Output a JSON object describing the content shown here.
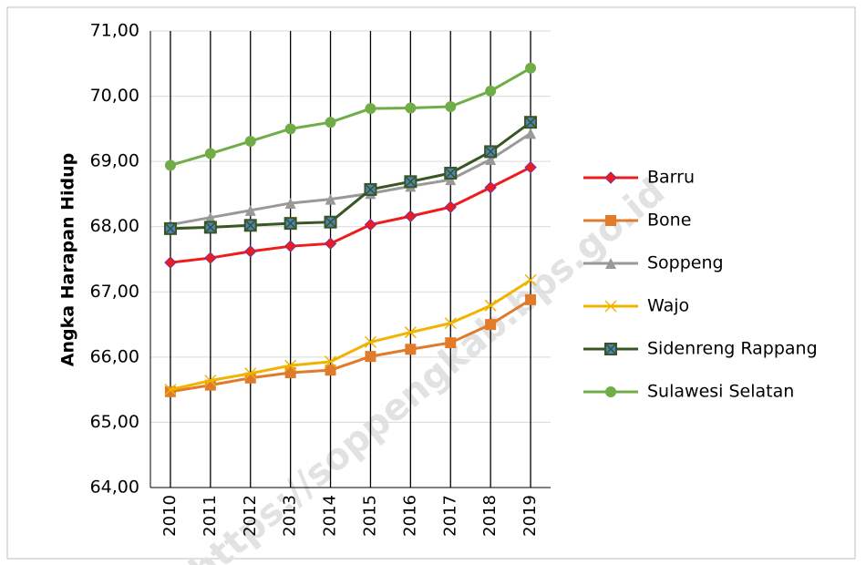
{
  "chart_data": {
    "type": "line",
    "y_label": "Angka Harapan Hidup",
    "watermark": "https://soppengkab.bps.go.id",
    "categories": [
      "2010",
      "2011",
      "2012",
      "2013",
      "2014",
      "2015",
      "2016",
      "2017",
      "2018",
      "2019"
    ],
    "series": [
      {
        "name": "Barru",
        "color": "#ee1c1c",
        "marker": "diamond",
        "values": [
          67.45,
          67.52,
          67.62,
          67.7,
          67.74,
          68.03,
          68.16,
          68.3,
          68.6,
          68.91
        ]
      },
      {
        "name": "Bone",
        "color": "#e07b2b",
        "marker": "square",
        "values": [
          65.47,
          65.57,
          65.68,
          65.76,
          65.8,
          66.01,
          66.12,
          66.22,
          66.5,
          66.88
        ]
      },
      {
        "name": "Soppeng",
        "color": "#999999",
        "marker": "triangle",
        "values": [
          68.03,
          68.14,
          68.25,
          68.36,
          68.42,
          68.51,
          68.62,
          68.72,
          69.03,
          69.43
        ]
      },
      {
        "name": "Wajo",
        "color": "#f0b400",
        "marker": "x",
        "values": [
          65.5,
          65.64,
          65.75,
          65.87,
          65.93,
          66.23,
          66.38,
          66.52,
          66.79,
          67.18
        ]
      },
      {
        "name": "Sidenreng Rappang",
        "color": "#375623",
        "marker": "squarex",
        "values": [
          67.97,
          67.99,
          68.02,
          68.05,
          68.07,
          68.57,
          68.69,
          68.82,
          69.15,
          69.6
        ]
      },
      {
        "name": "Sulawesi Selatan",
        "color": "#70ad47",
        "marker": "circle",
        "values": [
          68.94,
          69.12,
          69.31,
          69.5,
          69.6,
          69.81,
          69.82,
          69.84,
          70.08,
          70.43
        ]
      }
    ],
    "ylim": [
      64,
      71
    ],
    "yticks": [
      {
        "value": 64,
        "label": "64,00"
      },
      {
        "value": 65,
        "label": "65,00"
      },
      {
        "value": 66,
        "label": "66,00"
      },
      {
        "value": 67,
        "label": "67,00"
      },
      {
        "value": 68,
        "label": "68,00"
      },
      {
        "value": 69,
        "label": "69,00"
      },
      {
        "value": 70,
        "label": "70,00"
      },
      {
        "value": 71,
        "label": "71,00"
      }
    ],
    "grid": true,
    "legend": "right"
  }
}
